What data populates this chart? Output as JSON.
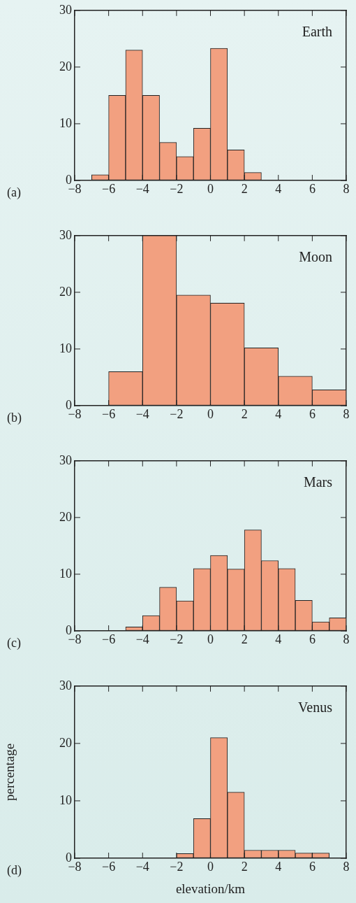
{
  "chart_data": [
    {
      "type": "histogram",
      "bins": [
        -7,
        -6,
        -5,
        -4,
        -3,
        -2,
        -1,
        0,
        1,
        2,
        3
      ],
      "values": [
        1,
        15,
        23,
        15,
        6.7,
        4.2,
        9.2,
        23.3,
        5.4,
        1.4
      ],
      "color": "#f2a080",
      "xlim": [
        -8,
        8
      ],
      "xticks": [
        {
          "value": -8,
          "label": "−8"
        },
        {
          "value": -6,
          "label": "−6"
        },
        {
          "value": -4,
          "label": "−4"
        },
        {
          "value": -2,
          "label": "−2"
        },
        0,
        2,
        4,
        6,
        8
      ],
      "ylim": [
        0,
        30
      ],
      "yticks": [
        0,
        10,
        20,
        30
      ],
      "annotations": [
        "Earth",
        "(a)"
      ]
    },
    {
      "type": "histogram",
      "bins": [
        -6,
        -4,
        -2,
        0,
        2,
        4,
        6,
        8
      ],
      "values": [
        6,
        30,
        19.5,
        18.1,
        10.2,
        5.2,
        2.8
      ],
      "color": "#f2a080",
      "xlim": [
        -8,
        8
      ],
      "xticks": [
        {
          "value": -8,
          "label": "−8"
        },
        {
          "value": -6,
          "label": "−6"
        },
        {
          "value": -4,
          "label": "−4"
        },
        {
          "value": -2,
          "label": "−2"
        },
        0,
        2,
        4,
        6,
        8
      ],
      "ylim": [
        0,
        30
      ],
      "yticks": [
        0,
        10,
        20,
        30
      ],
      "annotations": [
        "Moon",
        "(b)"
      ]
    },
    {
      "type": "histogram",
      "bins": [
        -5,
        -4,
        -3,
        -2,
        -1,
        0,
        1,
        2,
        3,
        4,
        5,
        6,
        7,
        8
      ],
      "values": [
        0.7,
        2.7,
        7.7,
        5.3,
        11,
        13.3,
        10.9,
        17.8,
        12.4,
        11,
        5.4,
        1.6,
        2.3
      ],
      "color": "#f2a080",
      "xlim": [
        -8,
        8
      ],
      "xticks": [
        {
          "value": -8,
          "label": "−8"
        },
        {
          "value": -6,
          "label": "−6"
        },
        {
          "value": -4,
          "label": "−4"
        },
        {
          "value": -2,
          "label": "−2"
        },
        0,
        2,
        4,
        6,
        8
      ],
      "ylim": [
        0,
        30
      ],
      "yticks": [
        0,
        10,
        20,
        30
      ],
      "annotations": [
        "Mars",
        "(c)"
      ]
    },
    {
      "type": "histogram",
      "bins": [
        -2,
        -1,
        0,
        1,
        2,
        3,
        4,
        5,
        6,
        7
      ],
      "values": [
        0.8,
        6.9,
        21,
        11.5,
        1.4,
        1.4,
        1.4,
        0.9,
        0.9
      ],
      "color": "#f2a080",
      "xlim": [
        -8,
        8
      ],
      "xticks": [
        {
          "value": -8,
          "label": "−8"
        },
        {
          "value": -6,
          "label": "−6"
        },
        {
          "value": -4,
          "label": "−4"
        },
        {
          "value": -2,
          "label": "−2"
        },
        0,
        2,
        4,
        6,
        8
      ],
      "ylim": [
        0,
        30
      ],
      "yticks": [
        0,
        10,
        20,
        30
      ],
      "xlabel": "elevation/km",
      "ylabel": "percentage",
      "annotations": [
        "Venus",
        "(d)"
      ]
    }
  ]
}
